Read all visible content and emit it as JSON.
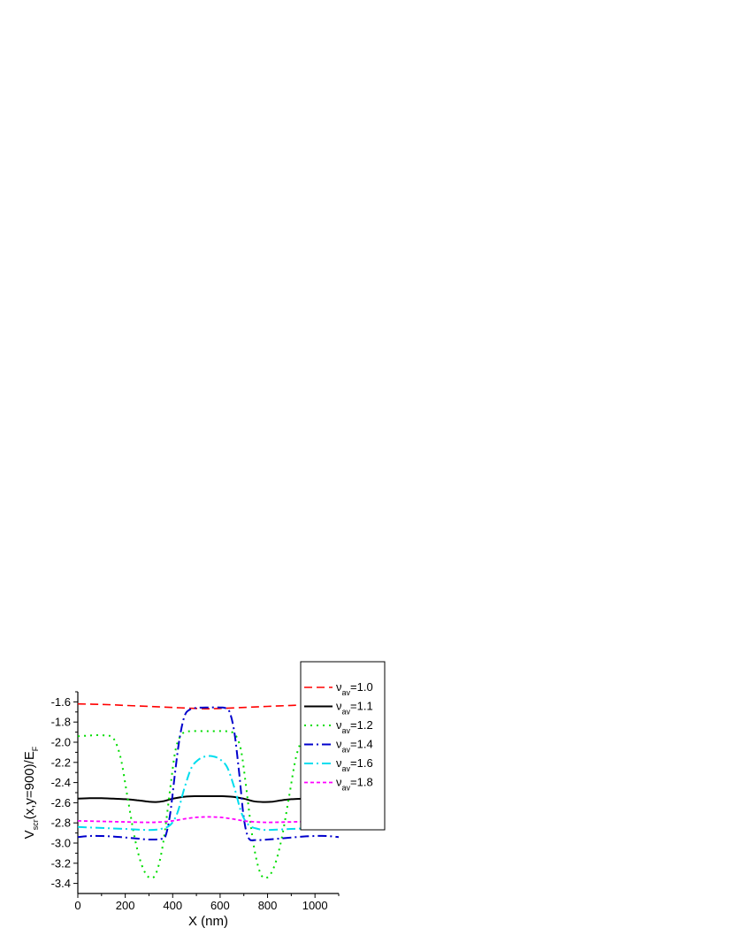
{
  "chart_data": {
    "type": "line",
    "xlabel": "X (nm)",
    "ylabel": {
      "main": "V",
      "sub": "scr",
      "rest": "(x,y=900)/E",
      "sub2": "F"
    },
    "xlim": [
      0,
      1100
    ],
    "ylim": [
      -3.5,
      -1.5
    ],
    "x_ticks": [
      0,
      200,
      400,
      600,
      800,
      1000
    ],
    "x_tick_labels": [
      "0",
      "200",
      "400",
      "600",
      "800",
      "1000"
    ],
    "y_ticks": [
      -1.6,
      -1.8,
      -2.0,
      -2.2,
      -2.4,
      -2.6,
      -2.8,
      -3.0,
      -3.2,
      -3.4
    ],
    "y_tick_labels": [
      "-1.6",
      "-1.8",
      "-2.0",
      "-2.2",
      "-2.4",
      "-2.6",
      "-2.8",
      "-3.0",
      "-3.2",
      "-3.4"
    ],
    "grid": false,
    "legend_position": "top-right",
    "series": [
      {
        "name": "1.0",
        "label_prefix": "ν",
        "label_sub": "av",
        "label_suffix": "=1.0",
        "color": "#ff0000",
        "dash": "9,5",
        "width": 1.6,
        "x": [
          0,
          100,
          200,
          300,
          400,
          500,
          550,
          600,
          700,
          800,
          900,
          1000,
          1100
        ],
        "y": [
          -1.62,
          -1.625,
          -1.635,
          -1.645,
          -1.655,
          -1.665,
          -1.668,
          -1.665,
          -1.655,
          -1.645,
          -1.635,
          -1.625,
          -1.62
        ]
      },
      {
        "name": "1.1",
        "label_prefix": "ν",
        "label_sub": "av",
        "label_suffix": "=1.1",
        "color": "#000000",
        "dash": "",
        "width": 2,
        "x": [
          0,
          50,
          100,
          150,
          200,
          250,
          300,
          330,
          360,
          400,
          450,
          500,
          550,
          600,
          650,
          700,
          740,
          780,
          820,
          860,
          900,
          950,
          1000,
          1050,
          1100
        ],
        "y": [
          -2.56,
          -2.555,
          -2.555,
          -2.56,
          -2.565,
          -2.575,
          -2.59,
          -2.593,
          -2.585,
          -2.56,
          -2.54,
          -2.535,
          -2.535,
          -2.535,
          -2.54,
          -2.56,
          -2.585,
          -2.593,
          -2.59,
          -2.575,
          -2.565,
          -2.56,
          -2.555,
          -2.555,
          -2.56
        ]
      },
      {
        "name": "1.2",
        "label_prefix": "ν",
        "label_sub": "av",
        "label_suffix": "=1.2",
        "color": "#00dd00",
        "dash": "2,5",
        "width": 2,
        "x": [
          0,
          40,
          80,
          120,
          150,
          180,
          210,
          240,
          270,
          300,
          330,
          360,
          390,
          410,
          430,
          450,
          480,
          550,
          620,
          650,
          670,
          690,
          710,
          740,
          770,
          800,
          830,
          860,
          890,
          920,
          950,
          980
        ],
        "y": [
          -1.94,
          -1.935,
          -1.93,
          -1.935,
          -1.96,
          -2.15,
          -2.55,
          -2.95,
          -3.22,
          -3.34,
          -3.3,
          -3.0,
          -2.45,
          -2.1,
          -1.95,
          -1.9,
          -1.89,
          -1.89,
          -1.89,
          -1.9,
          -1.95,
          -2.1,
          -2.45,
          -3.0,
          -3.3,
          -3.34,
          -3.22,
          -2.95,
          -2.55,
          -2.15,
          -1.96,
          -1.935
        ]
      },
      {
        "name": "1.4",
        "label_prefix": "ν",
        "label_sub": "av",
        "label_suffix": "=1.4",
        "color": "#0000cc",
        "dash": "10,4,2,4",
        "width": 2,
        "x": [
          0,
          50,
          100,
          150,
          200,
          250,
          300,
          350,
          370,
          390,
          410,
          430,
          450,
          470,
          500,
          550,
          600,
          620,
          640,
          660,
          680,
          700,
          720,
          750,
          800,
          850,
          900,
          950,
          1000,
          1050,
          1100
        ],
        "y": [
          -2.94,
          -2.93,
          -2.93,
          -2.935,
          -2.945,
          -2.955,
          -2.965,
          -2.96,
          -2.93,
          -2.7,
          -2.3,
          -1.95,
          -1.74,
          -1.68,
          -1.66,
          -1.655,
          -1.655,
          -1.66,
          -1.7,
          -1.9,
          -2.3,
          -2.75,
          -2.95,
          -2.97,
          -2.965,
          -2.955,
          -2.945,
          -2.935,
          -2.93,
          -2.93,
          -2.94
        ]
      },
      {
        "name": "1.6",
        "label_prefix": "ν",
        "label_sub": "av",
        "label_suffix": "=1.6",
        "color": "#00ddee",
        "dash": "10,4,2,4",
        "width": 2,
        "x": [
          0,
          100,
          200,
          300,
          350,
          390,
          420,
          450,
          480,
          510,
          540,
          570,
          600,
          630,
          660,
          690,
          720,
          760,
          800,
          900,
          1000
        ],
        "y": [
          -2.84,
          -2.85,
          -2.86,
          -2.87,
          -2.86,
          -2.82,
          -2.7,
          -2.45,
          -2.25,
          -2.17,
          -2.14,
          -2.14,
          -2.17,
          -2.25,
          -2.45,
          -2.7,
          -2.82,
          -2.86,
          -2.87,
          -2.86,
          -2.85
        ]
      },
      {
        "name": "1.8",
        "label_prefix": "ν",
        "label_sub": "av",
        "label_suffix": "=1.8",
        "color": "#ff00ff",
        "dash": "4,3",
        "width": 1.8,
        "x": [
          0,
          100,
          200,
          300,
          350,
          400,
          450,
          500,
          550,
          600,
          650,
          700,
          750,
          800,
          900,
          1000,
          1100
        ],
        "y": [
          -2.78,
          -2.785,
          -2.79,
          -2.795,
          -2.79,
          -2.78,
          -2.76,
          -2.745,
          -2.74,
          -2.745,
          -2.76,
          -2.78,
          -2.79,
          -2.795,
          -2.79,
          -2.785,
          -2.78
        ]
      }
    ]
  }
}
